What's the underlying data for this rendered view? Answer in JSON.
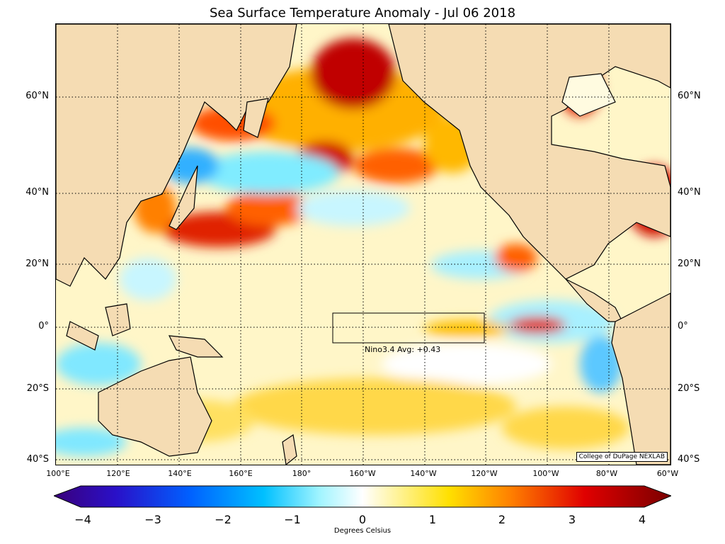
{
  "title": "Sea Surface Temperature Anomaly - Jul 06 2018",
  "colors": {
    "land": "#f5dcb3",
    "coast": "#000000",
    "grid": "#000000"
  },
  "latitude_labels": [
    "60°N",
    "40°N",
    "20°N",
    "0°",
    "20°S",
    "40°S"
  ],
  "longitude_labels": [
    "100°E",
    "120°E",
    "140°E",
    "160°E",
    "180°",
    "160°W",
    "140°W",
    "120°W",
    "100°W",
    "80°W",
    "60°W"
  ],
  "nino_box": {
    "label": "Nino3.4 Avg: +0.43"
  },
  "credit": "College of DuPage NEXLAB",
  "colorbar": {
    "ticks": [
      "−4",
      "−3",
      "−2",
      "−1",
      "0",
      "1",
      "2",
      "3",
      "4"
    ],
    "label": "Degrees Celsius",
    "range": [
      -4,
      4
    ]
  }
}
